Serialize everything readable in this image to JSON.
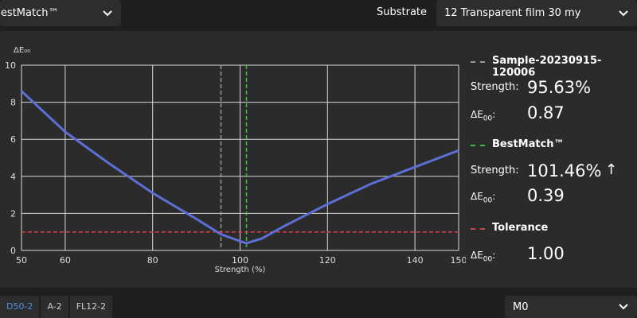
{
  "top": {
    "match_select": "BestMatch™",
    "substrate_label": "Substrate",
    "substrate_select": "12 Transparent film 30 my"
  },
  "side": {
    "sample_name": "Sample-20230915-120006",
    "sample_strength_label": "Strength:",
    "sample_strength": "95.63%",
    "sample_de_label": "ΔE",
    "sample_de_sub": "00",
    "sample_de_colon": ":",
    "sample_de": "0.87",
    "best_name": "BestMatch™",
    "best_strength_label": "Strength:",
    "best_strength": "101.46%",
    "best_arrow": "↑",
    "best_de_label": "ΔE",
    "best_de_sub": "00",
    "best_de_colon": ":",
    "best_de": "0.39",
    "tol_name": "Tolerance",
    "tol_de_label": "ΔE",
    "tol_de_sub": "00",
    "tol_de_colon": ":",
    "tol_de": "1.00"
  },
  "bottom": {
    "tabs": [
      "D50-2",
      "A-2",
      "FL12-2"
    ],
    "illuminant_select": "M0"
  },
  "colors": {
    "curve": "#5b6fd6",
    "sample_line": "#9a9a9a",
    "best_line": "#3fbf3f",
    "tolerance_line": "#d8424b"
  },
  "chart_data": {
    "type": "line",
    "ylabel": "ΔE₀₀",
    "xlabel": "Strength (%)",
    "xlim": [
      50,
      150
    ],
    "ylim": [
      0,
      10
    ],
    "x_ticks": [
      50,
      60,
      80,
      100,
      120,
      140,
      150
    ],
    "y_ticks": [
      0,
      2,
      4,
      6,
      8,
      10
    ],
    "grid": true,
    "series": [
      {
        "x": [
          50,
          55,
          60,
          70,
          80,
          90,
          95.63,
          100,
          101.46,
          105,
          110,
          120,
          130,
          140,
          150
        ],
        "y": [
          8.6,
          7.5,
          6.4,
          4.7,
          3.1,
          1.7,
          0.87,
          0.5,
          0.39,
          0.65,
          1.3,
          2.5,
          3.6,
          4.5,
          5.4
        ]
      }
    ],
    "reference_lines": [
      {
        "axis": "x",
        "value": 95.63,
        "color": "#9a9a9a"
      },
      {
        "axis": "x",
        "value": 101.46,
        "color": "#3fbf3f"
      },
      {
        "axis": "y",
        "value": 1.0,
        "color": "#d8424b"
      }
    ]
  }
}
